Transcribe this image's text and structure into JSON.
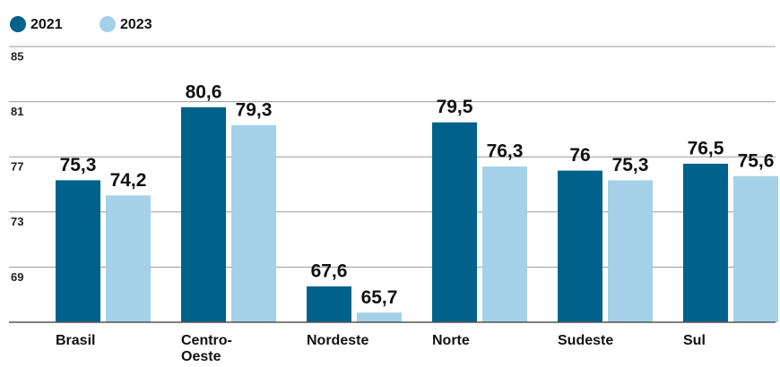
{
  "chart_data": {
    "type": "bar",
    "categories": [
      "Brasil",
      "Centro-Oeste",
      "Nordeste",
      "Norte",
      "Sudeste",
      "Sul"
    ],
    "series": [
      {
        "name": "2021",
        "color": "#00618a",
        "values": [
          75.3,
          80.6,
          67.6,
          79.5,
          76,
          76.5
        ],
        "value_labels": [
          "75,3",
          "80,6",
          "67,6",
          "79,5",
          "76",
          "76,5"
        ]
      },
      {
        "name": "2023",
        "color": "#a4d1e7",
        "values": [
          74.2,
          79.3,
          65.7,
          76.3,
          75.3,
          75.6
        ],
        "value_labels": [
          "74,2",
          "79,3",
          "65,7",
          "76,3",
          "75,3",
          "75,6"
        ]
      }
    ],
    "ylim": [
      65,
      85
    ],
    "yticks": [
      69,
      73,
      77,
      81,
      85
    ],
    "grid": true,
    "legend": "top-left"
  }
}
